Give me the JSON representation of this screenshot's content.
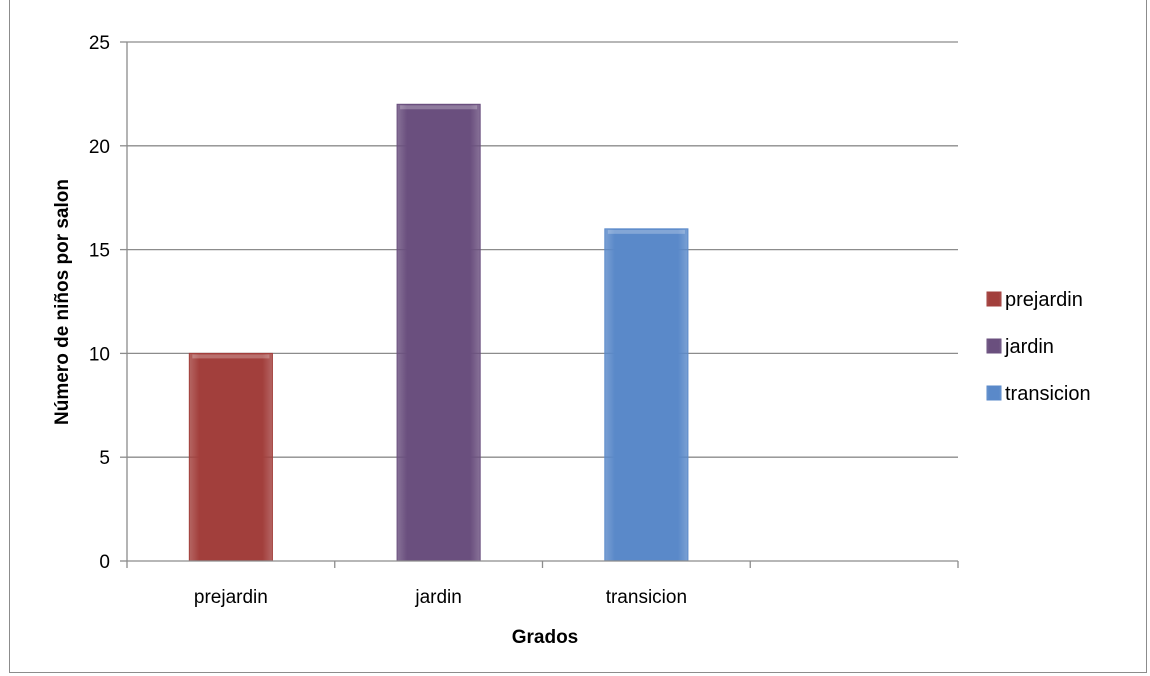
{
  "chart_data": {
    "type": "bar",
    "title": "",
    "xlabel": "Grados",
    "ylabel": "Número de niños por salon",
    "categories": [
      "prejardin",
      "jardin",
      "transicion"
    ],
    "series": [
      {
        "name": "prejardin",
        "values": [
          10,
          null,
          null
        ],
        "color": "#a23f3c"
      },
      {
        "name": "jardin",
        "values": [
          null,
          22,
          null
        ],
        "color": "#6a4f7e"
      },
      {
        "name": "transicion",
        "values": [
          null,
          null,
          16
        ],
        "color": "#5a89c9"
      }
    ],
    "yticks": [
      "0",
      "5",
      "10",
      "15",
      "20",
      "25"
    ],
    "ylim": [
      0,
      25
    ],
    "grid": true,
    "legend_position": "right"
  }
}
